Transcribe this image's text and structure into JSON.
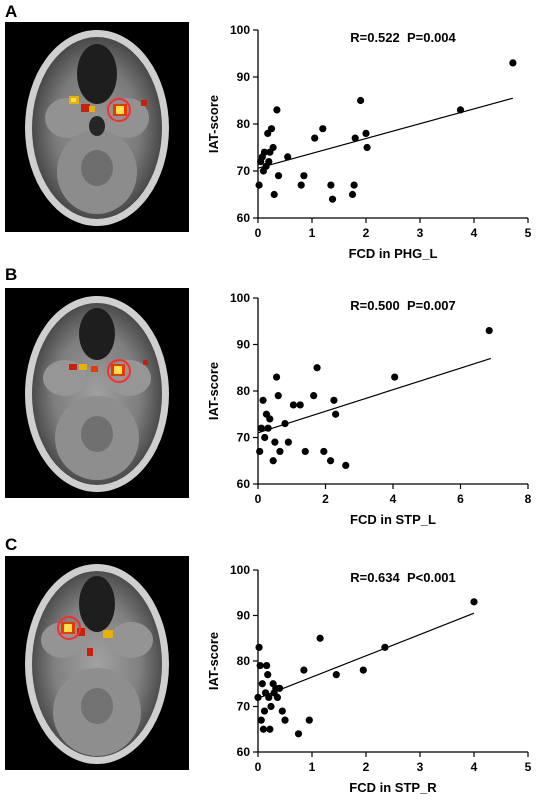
{
  "panels": [
    {
      "letter": "A",
      "stat": "R=0.522  P=0.004",
      "chart_data": {
        "type": "scatter",
        "xlabel": "FCD in PHG_L",
        "ylabel": "IAT-score",
        "xlim": [
          0,
          5
        ],
        "ylim": [
          60,
          100
        ],
        "xticks": [
          "0",
          "1",
          "2",
          "3",
          "4",
          "5"
        ],
        "yticks": [
          "60",
          "70",
          "80",
          "90",
          "100"
        ],
        "points": [
          [
            0.02,
            67
          ],
          [
            0.05,
            72
          ],
          [
            0.08,
            73
          ],
          [
            0.1,
            70
          ],
          [
            0.12,
            74
          ],
          [
            0.15,
            71
          ],
          [
            0.18,
            78
          ],
          [
            0.2,
            72
          ],
          [
            0.22,
            74
          ],
          [
            0.25,
            79
          ],
          [
            0.28,
            75
          ],
          [
            0.3,
            65
          ],
          [
            0.35,
            83
          ],
          [
            0.38,
            69
          ],
          [
            0.55,
            73
          ],
          [
            0.8,
            67
          ],
          [
            0.85,
            69
          ],
          [
            1.05,
            77
          ],
          [
            1.2,
            79
          ],
          [
            1.35,
            67
          ],
          [
            1.38,
            64
          ],
          [
            1.75,
            65
          ],
          [
            1.78,
            67
          ],
          [
            1.8,
            77
          ],
          [
            1.9,
            85
          ],
          [
            2.0,
            78
          ],
          [
            2.02,
            75
          ],
          [
            3.75,
            83
          ],
          [
            4.72,
            93
          ]
        ],
        "fit": [
          [
            0,
            70.6
          ],
          [
            4.72,
            85.5
          ]
        ]
      }
    },
    {
      "letter": "B",
      "stat": "R=0.500  P=0.007",
      "chart_data": {
        "type": "scatter",
        "xlabel": "FCD in STP_L",
        "ylabel": "IAT-score",
        "xlim": [
          0,
          8
        ],
        "ylim": [
          60,
          100
        ],
        "xticks": [
          "0",
          "2",
          "4",
          "6",
          "8"
        ],
        "yticks": [
          "60",
          "70",
          "80",
          "90",
          "100"
        ],
        "points": [
          [
            0.05,
            67
          ],
          [
            0.1,
            72
          ],
          [
            0.15,
            78
          ],
          [
            0.2,
            70
          ],
          [
            0.25,
            75
          ],
          [
            0.3,
            72
          ],
          [
            0.35,
            74
          ],
          [
            0.45,
            65
          ],
          [
            0.5,
            69
          ],
          [
            0.55,
            83
          ],
          [
            0.6,
            79
          ],
          [
            0.65,
            67
          ],
          [
            0.8,
            73
          ],
          [
            0.9,
            69
          ],
          [
            1.05,
            77
          ],
          [
            1.25,
            77
          ],
          [
            1.4,
            67
          ],
          [
            1.65,
            79
          ],
          [
            1.75,
            85
          ],
          [
            1.95,
            67
          ],
          [
            2.15,
            65
          ],
          [
            2.25,
            78
          ],
          [
            2.3,
            75
          ],
          [
            2.6,
            64
          ],
          [
            4.05,
            83
          ],
          [
            6.85,
            93
          ]
        ],
        "fit": [
          [
            0,
            71.0
          ],
          [
            6.9,
            87.0
          ]
        ]
      }
    },
    {
      "letter": "C",
      "stat": "R=0.634  P<0.001",
      "chart_data": {
        "type": "scatter",
        "xlabel": "FCD in STP_R",
        "ylabel": "IAT-score",
        "xlim": [
          0,
          5
        ],
        "ylim": [
          60,
          100
        ],
        "xticks": [
          "0",
          "1",
          "2",
          "3",
          "4",
          "5"
        ],
        "yticks": [
          "60",
          "70",
          "80",
          "90",
          "100"
        ],
        "points": [
          [
            0.0,
            72
          ],
          [
            0.02,
            83
          ],
          [
            0.04,
            79
          ],
          [
            0.06,
            67
          ],
          [
            0.08,
            75
          ],
          [
            0.1,
            65
          ],
          [
            0.12,
            69
          ],
          [
            0.14,
            73
          ],
          [
            0.16,
            79
          ],
          [
            0.18,
            77
          ],
          [
            0.2,
            72
          ],
          [
            0.22,
            65
          ],
          [
            0.24,
            70
          ],
          [
            0.28,
            75
          ],
          [
            0.3,
            73
          ],
          [
            0.33,
            74
          ],
          [
            0.36,
            72
          ],
          [
            0.4,
            74
          ],
          [
            0.45,
            69
          ],
          [
            0.5,
            67
          ],
          [
            0.75,
            64
          ],
          [
            0.85,
            78
          ],
          [
            0.95,
            67
          ],
          [
            1.15,
            85
          ],
          [
            1.45,
            77
          ],
          [
            1.95,
            78
          ],
          [
            2.35,
            83
          ],
          [
            4.0,
            93
          ]
        ],
        "fit": [
          [
            0,
            71.8
          ],
          [
            4.0,
            90.5
          ]
        ]
      }
    }
  ]
}
